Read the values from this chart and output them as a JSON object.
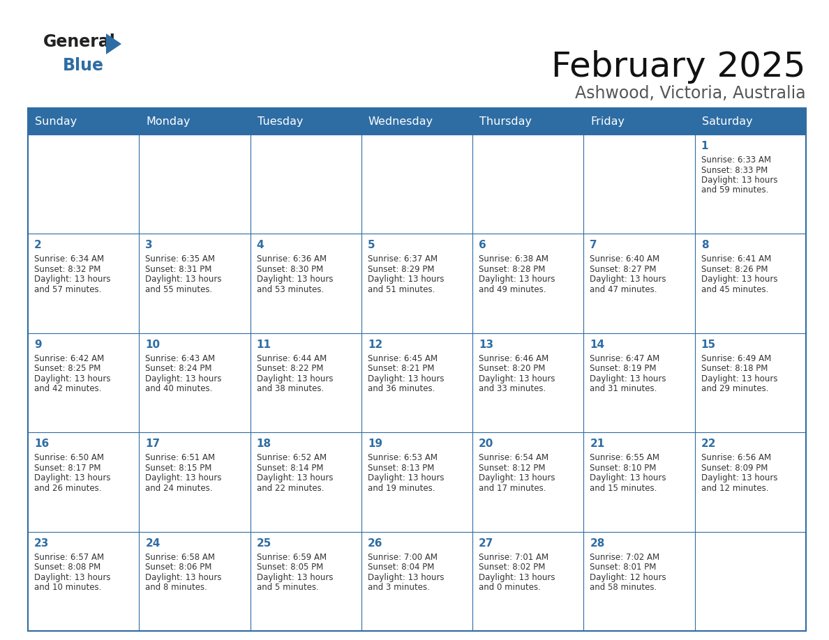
{
  "title": "February 2025",
  "subtitle": "Ashwood, Victoria, Australia",
  "header_bg": "#2e6da4",
  "header_text_color": "#ffffff",
  "border_color": "#2e6da4",
  "text_color": "#333333",
  "day_number_color": "#2e6da4",
  "days_of_week": [
    "Sunday",
    "Monday",
    "Tuesday",
    "Wednesday",
    "Thursday",
    "Friday",
    "Saturday"
  ],
  "weeks": [
    [
      {
        "day": null,
        "sunrise": null,
        "sunset": null,
        "daylight": null
      },
      {
        "day": null,
        "sunrise": null,
        "sunset": null,
        "daylight": null
      },
      {
        "day": null,
        "sunrise": null,
        "sunset": null,
        "daylight": null
      },
      {
        "day": null,
        "sunrise": null,
        "sunset": null,
        "daylight": null
      },
      {
        "day": null,
        "sunrise": null,
        "sunset": null,
        "daylight": null
      },
      {
        "day": null,
        "sunrise": null,
        "sunset": null,
        "daylight": null
      },
      {
        "day": 1,
        "sunrise": "6:33 AM",
        "sunset": "8:33 PM",
        "daylight_hours": 13,
        "daylight_minutes": 59
      }
    ],
    [
      {
        "day": 2,
        "sunrise": "6:34 AM",
        "sunset": "8:32 PM",
        "daylight_hours": 13,
        "daylight_minutes": 57
      },
      {
        "day": 3,
        "sunrise": "6:35 AM",
        "sunset": "8:31 PM",
        "daylight_hours": 13,
        "daylight_minutes": 55
      },
      {
        "day": 4,
        "sunrise": "6:36 AM",
        "sunset": "8:30 PM",
        "daylight_hours": 13,
        "daylight_minutes": 53
      },
      {
        "day": 5,
        "sunrise": "6:37 AM",
        "sunset": "8:29 PM",
        "daylight_hours": 13,
        "daylight_minutes": 51
      },
      {
        "day": 6,
        "sunrise": "6:38 AM",
        "sunset": "8:28 PM",
        "daylight_hours": 13,
        "daylight_minutes": 49
      },
      {
        "day": 7,
        "sunrise": "6:40 AM",
        "sunset": "8:27 PM",
        "daylight_hours": 13,
        "daylight_minutes": 47
      },
      {
        "day": 8,
        "sunrise": "6:41 AM",
        "sunset": "8:26 PM",
        "daylight_hours": 13,
        "daylight_minutes": 45
      }
    ],
    [
      {
        "day": 9,
        "sunrise": "6:42 AM",
        "sunset": "8:25 PM",
        "daylight_hours": 13,
        "daylight_minutes": 42
      },
      {
        "day": 10,
        "sunrise": "6:43 AM",
        "sunset": "8:24 PM",
        "daylight_hours": 13,
        "daylight_minutes": 40
      },
      {
        "day": 11,
        "sunrise": "6:44 AM",
        "sunset": "8:22 PM",
        "daylight_hours": 13,
        "daylight_minutes": 38
      },
      {
        "day": 12,
        "sunrise": "6:45 AM",
        "sunset": "8:21 PM",
        "daylight_hours": 13,
        "daylight_minutes": 36
      },
      {
        "day": 13,
        "sunrise": "6:46 AM",
        "sunset": "8:20 PM",
        "daylight_hours": 13,
        "daylight_minutes": 33
      },
      {
        "day": 14,
        "sunrise": "6:47 AM",
        "sunset": "8:19 PM",
        "daylight_hours": 13,
        "daylight_minutes": 31
      },
      {
        "day": 15,
        "sunrise": "6:49 AM",
        "sunset": "8:18 PM",
        "daylight_hours": 13,
        "daylight_minutes": 29
      }
    ],
    [
      {
        "day": 16,
        "sunrise": "6:50 AM",
        "sunset": "8:17 PM",
        "daylight_hours": 13,
        "daylight_minutes": 26
      },
      {
        "day": 17,
        "sunrise": "6:51 AM",
        "sunset": "8:15 PM",
        "daylight_hours": 13,
        "daylight_minutes": 24
      },
      {
        "day": 18,
        "sunrise": "6:52 AM",
        "sunset": "8:14 PM",
        "daylight_hours": 13,
        "daylight_minutes": 22
      },
      {
        "day": 19,
        "sunrise": "6:53 AM",
        "sunset": "8:13 PM",
        "daylight_hours": 13,
        "daylight_minutes": 19
      },
      {
        "day": 20,
        "sunrise": "6:54 AM",
        "sunset": "8:12 PM",
        "daylight_hours": 13,
        "daylight_minutes": 17
      },
      {
        "day": 21,
        "sunrise": "6:55 AM",
        "sunset": "8:10 PM",
        "daylight_hours": 13,
        "daylight_minutes": 15
      },
      {
        "day": 22,
        "sunrise": "6:56 AM",
        "sunset": "8:09 PM",
        "daylight_hours": 13,
        "daylight_minutes": 12
      }
    ],
    [
      {
        "day": 23,
        "sunrise": "6:57 AM",
        "sunset": "8:08 PM",
        "daylight_hours": 13,
        "daylight_minutes": 10
      },
      {
        "day": 24,
        "sunrise": "6:58 AM",
        "sunset": "8:06 PM",
        "daylight_hours": 13,
        "daylight_minutes": 8
      },
      {
        "day": 25,
        "sunrise": "6:59 AM",
        "sunset": "8:05 PM",
        "daylight_hours": 13,
        "daylight_minutes": 5
      },
      {
        "day": 26,
        "sunrise": "7:00 AM",
        "sunset": "8:04 PM",
        "daylight_hours": 13,
        "daylight_minutes": 3
      },
      {
        "day": 27,
        "sunrise": "7:01 AM",
        "sunset": "8:02 PM",
        "daylight_hours": 13,
        "daylight_minutes": 0
      },
      {
        "day": 28,
        "sunrise": "7:02 AM",
        "sunset": "8:01 PM",
        "daylight_hours": 12,
        "daylight_minutes": 58
      },
      {
        "day": null,
        "sunrise": null,
        "sunset": null,
        "daylight_hours": null,
        "daylight_minutes": null
      }
    ]
  ]
}
